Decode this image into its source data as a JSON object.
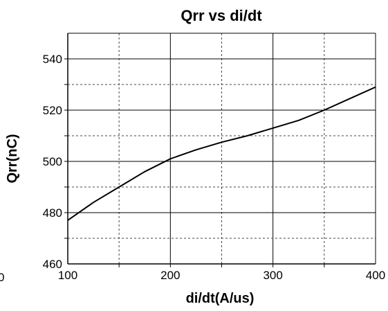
{
  "chart_data": {
    "type": "line",
    "title": "Qrr vs di/dt",
    "xlabel": "di/dt(A/us)",
    "ylabel": "Qrr(nC)",
    "xlim": [
      100,
      400
    ],
    "ylim": [
      460,
      550
    ],
    "x_ticks": [
      100,
      200,
      300,
      400
    ],
    "x_tick_labels": [
      "100",
      "200",
      "300",
      "400"
    ],
    "y_ticks": [
      460,
      480,
      500,
      520,
      540
    ],
    "y_tick_labels": [
      "460",
      "480",
      "500",
      "520",
      "540"
    ],
    "grid": true,
    "series": [
      {
        "color": "#000000",
        "x": [
          100,
          125,
          150,
          175,
          200,
          225,
          250,
          275,
          300,
          325,
          350,
          375,
          400
        ],
        "y": [
          477,
          484,
          490,
          496,
          501,
          504.5,
          507.5,
          510,
          513,
          516,
          520,
          524.5,
          529
        ]
      }
    ]
  },
  "stray_label": "0"
}
